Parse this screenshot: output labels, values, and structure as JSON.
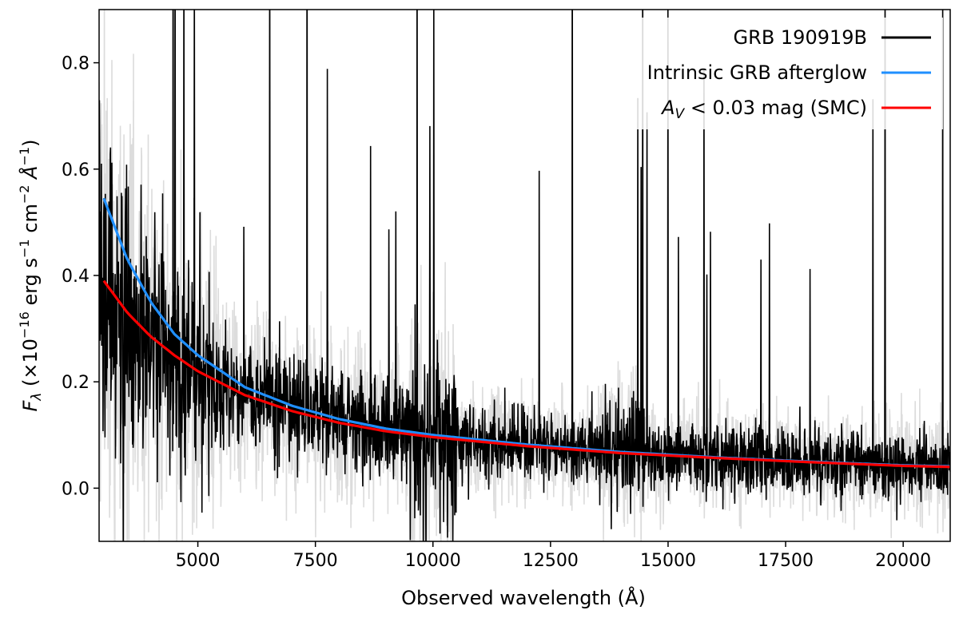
{
  "chart_data": {
    "type": "line",
    "xlabel": "Observed wavelength (Å)",
    "ylabel": "F_λ (×10^−16 erg s^−1 cm^−2 Å^−1)",
    "xlim": [
      2900,
      21000
    ],
    "ylim": [
      -0.1,
      0.9
    ],
    "xticks": [
      5000,
      7500,
      10000,
      12500,
      15000,
      17500,
      20000
    ],
    "xtick_labels": [
      "5000",
      "7500",
      "10000",
      "12500",
      "15000",
      "17500",
      "20000"
    ],
    "yticks": [
      0.0,
      0.2,
      0.4,
      0.6,
      0.8
    ],
    "ytick_labels": [
      "0.0",
      "0.2",
      "0.4",
      "0.6",
      "0.8"
    ],
    "grid": false,
    "legend": "top-right",
    "series": [
      {
        "name": "GRB 190919B",
        "color": "#000000",
        "style": "noisy-spectrum",
        "x": [
          3000,
          4000,
          5000,
          6000,
          7000,
          8000,
          9000,
          10000,
          12000,
          14000,
          16000,
          18000,
          20000,
          21000
        ],
        "y": [
          0.35,
          0.27,
          0.21,
          0.17,
          0.15,
          0.13,
          0.11,
          0.1,
          0.08,
          0.065,
          0.055,
          0.05,
          0.045,
          0.04
        ]
      },
      {
        "name": "Intrinsic GRB afterglow",
        "color": "#1f8fff",
        "x": [
          3000,
          3500,
          4000,
          4500,
          5000,
          6000,
          7000,
          8000,
          9000,
          10000,
          12000,
          14000,
          16000,
          18000,
          20000,
          21000
        ],
        "y": [
          0.545,
          0.43,
          0.35,
          0.29,
          0.25,
          0.19,
          0.155,
          0.13,
          0.112,
          0.1,
          0.082,
          0.068,
          0.058,
          0.05,
          0.043,
          0.041
        ]
      },
      {
        "name_parts": [
          "A",
          "V",
          " < 0.03 mag (SMC)"
        ],
        "color": "#ff0000",
        "x": [
          3000,
          3500,
          4000,
          4500,
          5000,
          6000,
          7000,
          8000,
          9000,
          10000,
          12000,
          14000,
          16000,
          18000,
          20000,
          21000
        ],
        "y": [
          0.39,
          0.33,
          0.285,
          0.25,
          0.22,
          0.175,
          0.145,
          0.123,
          0.107,
          0.096,
          0.079,
          0.066,
          0.057,
          0.049,
          0.042,
          0.04
        ]
      }
    ]
  }
}
